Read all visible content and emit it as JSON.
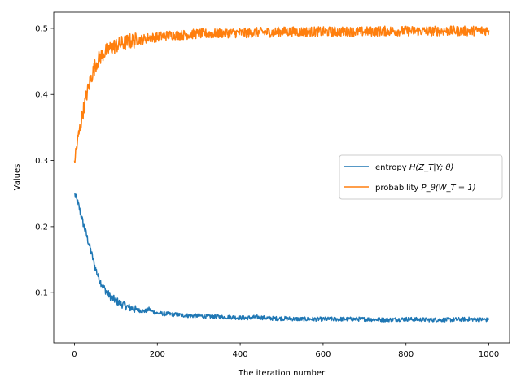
{
  "chart_data": {
    "type": "line",
    "title": "",
    "xlabel": "The iteration number",
    "ylabel": "Values",
    "xlim": [
      -50,
      1050
    ],
    "ylim": [
      0.024,
      0.5245
    ],
    "x_ticks": [
      0,
      200,
      400,
      600,
      800,
      1000
    ],
    "y_ticks": [
      0.1,
      0.2,
      0.3,
      0.4,
      0.5
    ],
    "x_tick_labels": [
      "0",
      "200",
      "400",
      "600",
      "800",
      "1000"
    ],
    "y_tick_labels": [
      "0.1",
      "0.2",
      "0.3",
      "0.4",
      "0.5"
    ],
    "grid": false,
    "legend_position": "center-right",
    "legend": [
      {
        "prefix": "entropy ",
        "math": "H(Z_T|Y; θ)",
        "color": "#1f77b4"
      },
      {
        "prefix": "probability ",
        "math": "P_θ(W_T = 1)",
        "color": "#ff7f0e"
      }
    ],
    "series": [
      {
        "name": "entropy H(Z_T|Y; θ)",
        "color": "#1f77b4",
        "x": [
          0,
          10,
          20,
          30,
          40,
          50,
          60,
          70,
          80,
          90,
          100,
          110,
          120,
          130,
          140,
          150,
          160,
          170,
          180,
          190,
          200,
          220,
          240,
          260,
          280,
          300,
          320,
          340,
          360,
          380,
          400,
          420,
          440,
          460,
          480,
          500,
          550,
          600,
          650,
          700,
          750,
          800,
          850,
          900,
          950,
          1000
        ],
        "values": [
          0.25,
          0.232,
          0.207,
          0.185,
          0.162,
          0.138,
          0.12,
          0.108,
          0.099,
          0.092,
          0.088,
          0.084,
          0.081,
          0.078,
          0.076,
          0.074,
          0.073,
          0.072,
          0.075,
          0.071,
          0.069,
          0.068,
          0.067,
          0.066,
          0.065,
          0.065,
          0.064,
          0.064,
          0.063,
          0.063,
          0.062,
          0.062,
          0.063,
          0.062,
          0.061,
          0.061,
          0.06,
          0.06,
          0.06,
          0.06,
          0.059,
          0.06,
          0.059,
          0.059,
          0.06,
          0.059
        ]
      },
      {
        "name": "probability P_θ(W_T = 1)",
        "color": "#ff7f0e",
        "x": [
          0,
          10,
          20,
          30,
          40,
          50,
          60,
          70,
          80,
          90,
          100,
          110,
          120,
          130,
          140,
          150,
          160,
          170,
          180,
          190,
          200,
          220,
          240,
          260,
          280,
          300,
          320,
          340,
          360,
          380,
          400,
          420,
          440,
          460,
          480,
          500,
          550,
          600,
          650,
          700,
          750,
          800,
          850,
          900,
          950,
          1000
        ],
        "values": [
          0.3,
          0.338,
          0.372,
          0.401,
          0.425,
          0.444,
          0.455,
          0.462,
          0.467,
          0.471,
          0.474,
          0.476,
          0.478,
          0.48,
          0.481,
          0.482,
          0.483,
          0.484,
          0.486,
          0.486,
          0.487,
          0.489,
          0.49,
          0.49,
          0.491,
          0.492,
          0.492,
          0.492,
          0.493,
          0.493,
          0.493,
          0.493,
          0.494,
          0.494,
          0.494,
          0.495,
          0.495,
          0.495,
          0.495,
          0.495,
          0.496,
          0.496,
          0.496,
          0.496,
          0.496,
          0.497
        ]
      }
    ]
  }
}
